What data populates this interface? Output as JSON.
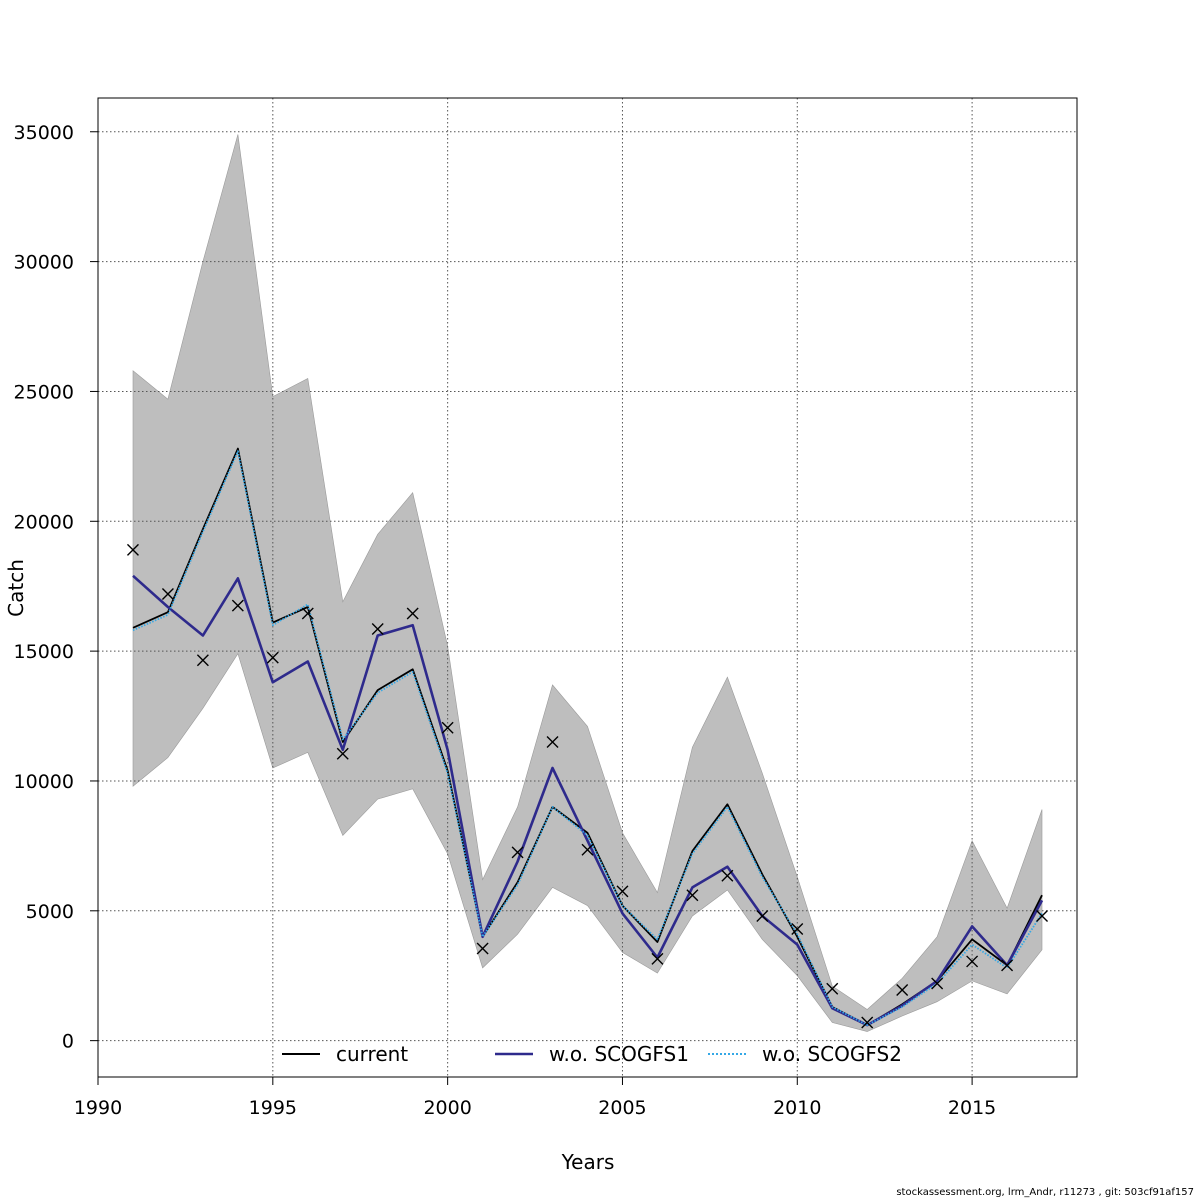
{
  "chart_data": {
    "type": "line",
    "title": "",
    "xlabel": "Years",
    "ylabel": "Catch",
    "xlim": [
      1990,
      2018
    ],
    "ylim": [
      -1400,
      36300
    ],
    "x_ticks": [
      1990,
      1995,
      2000,
      2005,
      2010,
      2015
    ],
    "y_ticks": [
      0,
      5000,
      10000,
      15000,
      20000,
      25000,
      30000,
      35000
    ],
    "x_tick_labels": [
      "1990",
      "1995",
      "2000",
      "2005",
      "2010",
      "2015"
    ],
    "y_tick_labels": [
      "0",
      "5000",
      "10000",
      "15000",
      "20000",
      "25000",
      "30000",
      "35000"
    ],
    "grid": true,
    "legend_position": "bottom",
    "x": [
      1991,
      1992,
      1993,
      1994,
      1995,
      1996,
      1997,
      1998,
      1999,
      2000,
      2001,
      2002,
      2003,
      2004,
      2005,
      2006,
      2007,
      2008,
      2009,
      2010,
      2011,
      2012,
      2013,
      2014,
      2015,
      2016,
      2017
    ],
    "confidence_band": {
      "color": "#bebebe",
      "upper": [
        25800,
        24700,
        30000,
        34900,
        24800,
        25500,
        16900,
        19500,
        21100,
        15200,
        6200,
        9000,
        13700,
        12100,
        8000,
        5700,
        11300,
        14000,
        10300,
        6300,
        2100,
        1200,
        2400,
        4000,
        7700,
        5100,
        8900
      ],
      "lower": [
        9800,
        10900,
        12800,
        14900,
        10500,
        11100,
        7900,
        9300,
        9700,
        7200,
        2800,
        4100,
        5900,
        5200,
        3400,
        2600,
        4800,
        5800,
        3900,
        2500,
        700,
        350,
        950,
        1500,
        2300,
        1800,
        3500
      ]
    },
    "series": [
      {
        "name": "current",
        "color": "#000000",
        "dash": "solid",
        "values": [
          15900,
          16500,
          19700,
          22800,
          16100,
          16700,
          11500,
          13500,
          14300,
          10400,
          4000,
          6100,
          9000,
          8000,
          5200,
          3800,
          7300,
          9100,
          6400,
          4000,
          1300,
          600,
          1400,
          2300,
          3900,
          2900,
          5600
        ]
      },
      {
        "name": "w.o. SCOGFS1",
        "color": "#2e2a8c",
        "dash": "solid",
        "values": [
          17900,
          16700,
          15600,
          17800,
          13800,
          14600,
          11200,
          15600,
          16000,
          11200,
          4000,
          6900,
          10500,
          7700,
          4900,
          3200,
          5900,
          6700,
          4800,
          3700,
          1250,
          600,
          1350,
          2300,
          4400,
          2900,
          5400
        ]
      },
      {
        "name": "w.o. SCOGFS2",
        "color": "#35a8e6",
        "dash": "dotted",
        "values": [
          15800,
          16400,
          19600,
          22700,
          16000,
          16800,
          11600,
          13400,
          14200,
          10300,
          4000,
          6000,
          9000,
          7900,
          5200,
          3900,
          7200,
          9000,
          6300,
          4100,
          1300,
          600,
          1300,
          2200,
          3700,
          2800,
          4900
        ]
      }
    ],
    "observations": {
      "marker": "x",
      "values": [
        18900,
        17200,
        14650,
        16750,
        14750,
        16450,
        11050,
        15850,
        16450,
        12050,
        3550,
        7250,
        11500,
        7350,
        5750,
        3150,
        5600,
        6350,
        4800,
        4300,
        2000,
        700,
        1950,
        2200,
        3050,
        2900,
        4800
      ]
    }
  },
  "footer_text": "stockassessment.org, lrm_Andr, r11273 , git: 503cf91af157"
}
